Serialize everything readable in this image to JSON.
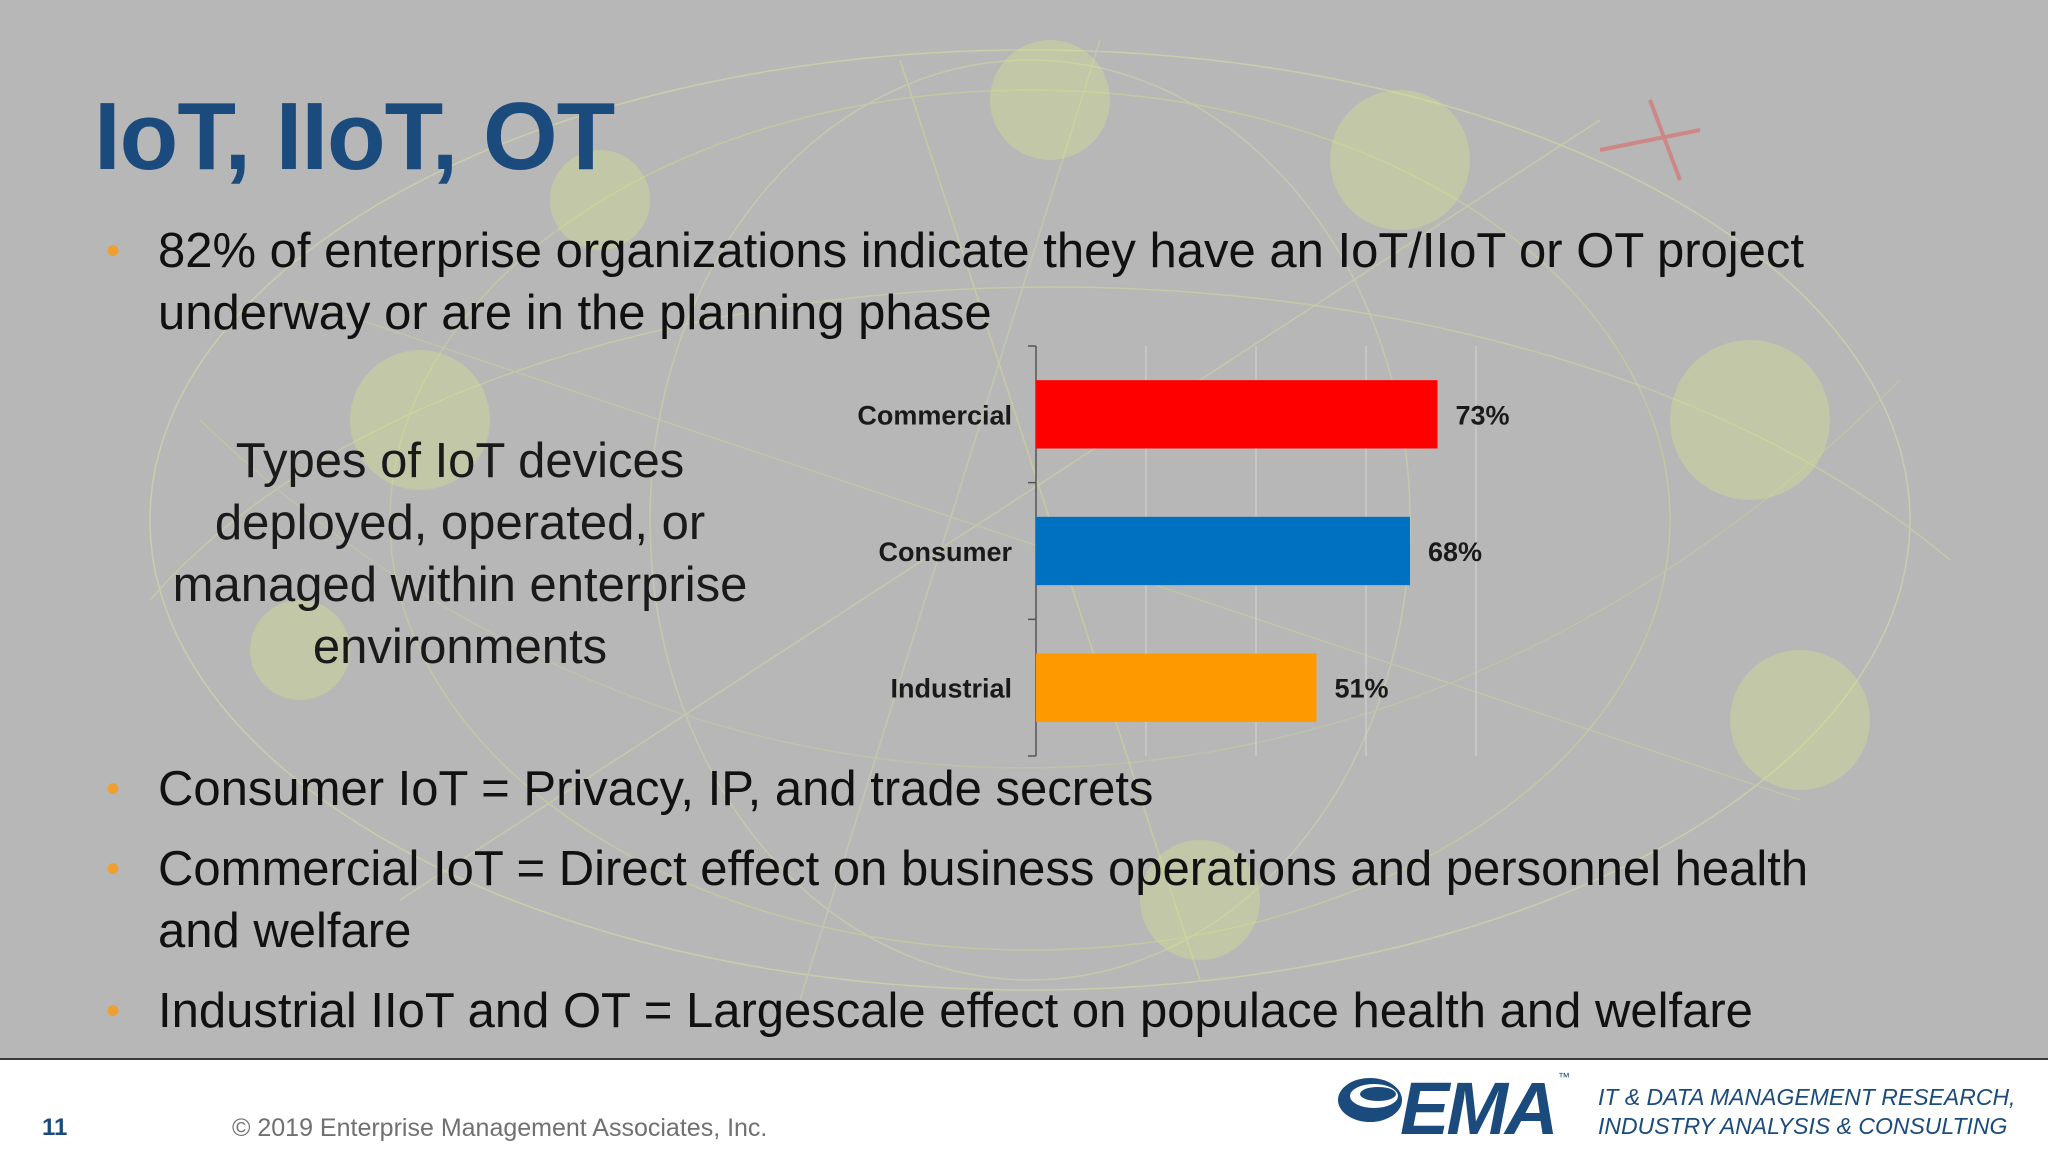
{
  "slide": {
    "title": "IoT, IIoT, OT",
    "bullets": [
      "82% of enterprise organizations indicate they have an IoT/IIoT or OT project",
      "underway or are in the planning phase",
      "Consumer IoT = Privacy, IP, and trade secrets",
      "Commercial IoT = Direct effect on business operations and personnel health",
      "and welfare",
      "Industrial IIoT and OT = Largescale effect on populace health and welfare"
    ],
    "caption_lines": [
      "Types of IoT devices",
      "deployed, operated, or",
      "managed within enterprise",
      "environments"
    ],
    "bullet_color": "#f0a030",
    "title_color": "#1b4b7c"
  },
  "chart_data": {
    "type": "bar",
    "orientation": "horizontal",
    "categories": [
      "Commercial",
      "Consumer",
      "Industrial"
    ],
    "values": [
      73,
      68,
      51
    ],
    "data_labels": [
      "73%",
      "68%",
      "51%"
    ],
    "colors": [
      "#ff0000",
      "#0070c0",
      "#ff9900"
    ],
    "xlim": [
      0,
      100
    ],
    "grid": true,
    "title": "",
    "xlabel": "",
    "ylabel": ""
  },
  "footer": {
    "page_number": "11",
    "copyright": "© 2019 Enterprise Management Associates, Inc.",
    "logo_text": "EMA",
    "logo_tm": "™",
    "tagline_lines": [
      "IT & DATA MANAGEMENT RESEARCH,",
      "INDUSTRY ANALYSIS & CONSULTING"
    ]
  }
}
